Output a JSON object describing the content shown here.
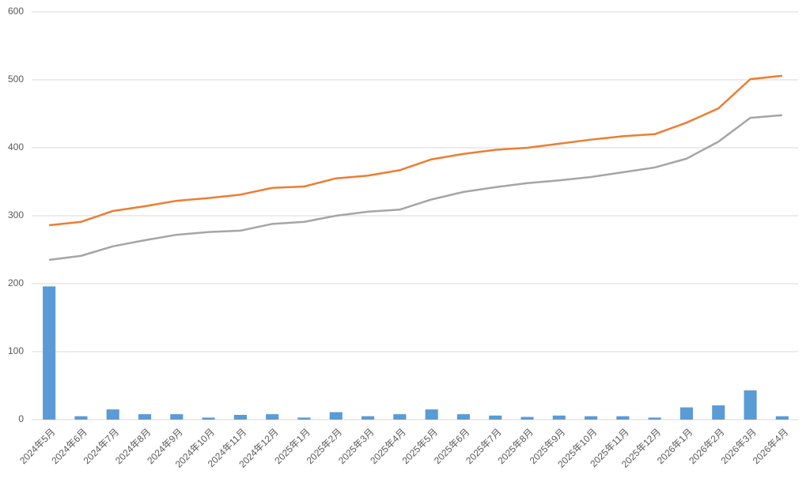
{
  "chart_data": {
    "type": "combo",
    "categories": [
      "2024年5月",
      "2024年6月",
      "2024年7月",
      "2024年8月",
      "2024年9月",
      "2024年10月",
      "2024年11月",
      "2024年12月",
      "2025年1月",
      "2025年2月",
      "2025年3月",
      "2025年4月",
      "2025年5月",
      "2025年6月",
      "2025年7月",
      "2025年8月",
      "2025年9月",
      "2025年10月",
      "2025年11月",
      "2025年12月",
      "2026年1月",
      "2026年2月",
      "2026年3月",
      "2026年4月"
    ],
    "series": [
      {
        "type": "bar",
        "color": "#5b9bd5",
        "values": [
          196,
          5,
          15,
          8,
          8,
          3,
          7,
          8,
          3,
          11,
          5,
          8,
          15,
          8,
          6,
          4,
          6,
          5,
          5,
          3,
          18,
          21,
          43,
          5
        ]
      },
      {
        "type": "line",
        "color": "#ed7d31",
        "values": [
          286,
          291,
          307,
          314,
          322,
          326,
          331,
          341,
          343,
          355,
          359,
          367,
          383,
          391,
          397,
          400,
          406,
          412,
          417,
          420,
          437,
          458,
          501,
          506
        ]
      },
      {
        "type": "line",
        "color": "#a5a5a5",
        "values": [
          235,
          241,
          255,
          264,
          272,
          276,
          278,
          288,
          291,
          300,
          306,
          309,
          324,
          335,
          342,
          348,
          352,
          357,
          364,
          371,
          384,
          409,
          444,
          448
        ]
      }
    ],
    "ylim": [
      0,
      600
    ],
    "yticks": [
      0,
      100,
      200,
      300,
      400,
      500,
      600
    ],
    "grid": true
  }
}
